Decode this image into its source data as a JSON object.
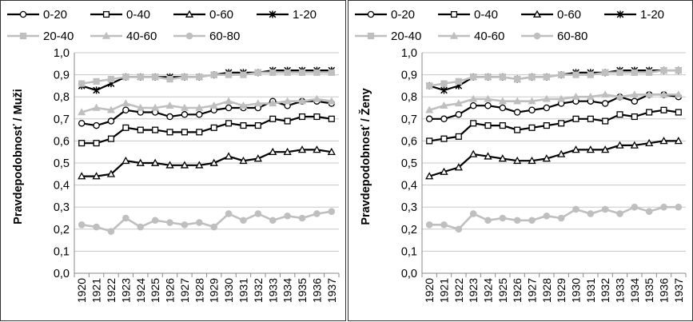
{
  "chart_data": [
    {
      "type": "line",
      "ylabel": "Pravdepodobnosť / Muži",
      "xlabel": "",
      "ylim": [
        0,
        1
      ],
      "yticks": [
        "0,0",
        "0,1",
        "0,2",
        "0,3",
        "0,4",
        "0,5",
        "0,6",
        "0,7",
        "0,8",
        "0,9",
        "1,0"
      ],
      "grid": true,
      "legend": "top",
      "categories": [
        "1920",
        "1921",
        "1922",
        "1923",
        "1924",
        "1925",
        "1926",
        "1927",
        "1928",
        "1929",
        "1930",
        "1931",
        "1932",
        "1933",
        "1934",
        "1935",
        "1936",
        "1937"
      ],
      "series": [
        {
          "name": "0-20",
          "marker": "circle-open",
          "color": "#000000",
          "values": [
            0.68,
            0.67,
            0.69,
            0.74,
            0.73,
            0.73,
            0.71,
            0.72,
            0.72,
            0.74,
            0.75,
            0.75,
            0.75,
            0.78,
            0.76,
            0.78,
            0.78,
            0.77
          ]
        },
        {
          "name": "0-40",
          "marker": "square-open",
          "color": "#000000",
          "values": [
            0.59,
            0.59,
            0.61,
            0.66,
            0.65,
            0.65,
            0.64,
            0.64,
            0.64,
            0.66,
            0.68,
            0.67,
            0.67,
            0.7,
            0.69,
            0.71,
            0.71,
            0.7
          ]
        },
        {
          "name": "0-60",
          "marker": "triangle-open",
          "color": "#000000",
          "values": [
            0.44,
            0.44,
            0.45,
            0.51,
            0.5,
            0.5,
            0.49,
            0.49,
            0.49,
            0.5,
            0.53,
            0.51,
            0.52,
            0.55,
            0.55,
            0.56,
            0.56,
            0.55
          ]
        },
        {
          "name": "1-20",
          "marker": "star",
          "color": "#000000",
          "values": [
            0.85,
            0.83,
            0.86,
            0.89,
            0.89,
            0.89,
            0.89,
            0.89,
            0.89,
            0.9,
            0.91,
            0.91,
            0.91,
            0.92,
            0.92,
            0.92,
            0.92,
            0.92
          ]
        },
        {
          "name": "20-40",
          "marker": "square-filled",
          "color": "#bfbfbf",
          "values": [
            0.86,
            0.87,
            0.88,
            0.89,
            0.89,
            0.89,
            0.88,
            0.89,
            0.89,
            0.9,
            0.9,
            0.9,
            0.91,
            0.91,
            0.91,
            0.91,
            0.91,
            0.91
          ]
        },
        {
          "name": "40-60",
          "marker": "triangle-filled",
          "color": "#bfbfbf",
          "values": [
            0.73,
            0.75,
            0.74,
            0.77,
            0.75,
            0.75,
            0.76,
            0.75,
            0.75,
            0.76,
            0.78,
            0.76,
            0.77,
            0.77,
            0.78,
            0.78,
            0.79,
            0.78
          ]
        },
        {
          "name": "60-80",
          "marker": "circle-filled",
          "color": "#bfbfbf",
          "values": [
            0.22,
            0.21,
            0.19,
            0.25,
            0.21,
            0.24,
            0.23,
            0.22,
            0.23,
            0.21,
            0.27,
            0.24,
            0.27,
            0.24,
            0.26,
            0.25,
            0.27,
            0.28
          ]
        }
      ]
    },
    {
      "type": "line",
      "ylabel": "Pravdepodobnosť / Ženy",
      "xlabel": "",
      "ylim": [
        0,
        1
      ],
      "yticks": [
        "0,0",
        "0,1",
        "0,2",
        "0,3",
        "0,4",
        "0,5",
        "0,6",
        "0,7",
        "0,8",
        "0,9",
        "1,0"
      ],
      "grid": true,
      "legend": "top",
      "categories": [
        "1920",
        "1921",
        "1922",
        "1923",
        "1924",
        "1925",
        "1926",
        "1927",
        "1928",
        "1929",
        "1930",
        "1931",
        "1932",
        "1933",
        "1934",
        "1935",
        "1936",
        "1937"
      ],
      "series": [
        {
          "name": "0-20",
          "marker": "circle-open",
          "color": "#000000",
          "values": [
            0.7,
            0.7,
            0.72,
            0.76,
            0.76,
            0.75,
            0.73,
            0.74,
            0.75,
            0.77,
            0.78,
            0.78,
            0.77,
            0.8,
            0.78,
            0.81,
            0.81,
            0.8
          ]
        },
        {
          "name": "0-40",
          "marker": "square-open",
          "color": "#000000",
          "values": [
            0.6,
            0.61,
            0.62,
            0.68,
            0.67,
            0.67,
            0.65,
            0.66,
            0.67,
            0.68,
            0.7,
            0.7,
            0.69,
            0.72,
            0.71,
            0.73,
            0.74,
            0.73
          ]
        },
        {
          "name": "0-60",
          "marker": "triangle-open",
          "color": "#000000",
          "values": [
            0.44,
            0.46,
            0.48,
            0.54,
            0.53,
            0.52,
            0.51,
            0.51,
            0.52,
            0.54,
            0.56,
            0.56,
            0.56,
            0.58,
            0.58,
            0.59,
            0.6,
            0.6
          ]
        },
        {
          "name": "1-20",
          "marker": "star",
          "color": "#000000",
          "values": [
            0.85,
            0.83,
            0.85,
            0.89,
            0.89,
            0.89,
            0.88,
            0.89,
            0.89,
            0.9,
            0.91,
            0.91,
            0.91,
            0.92,
            0.92,
            0.92,
            0.92,
            0.92
          ]
        },
        {
          "name": "20-40",
          "marker": "square-filled",
          "color": "#bfbfbf",
          "values": [
            0.85,
            0.86,
            0.87,
            0.89,
            0.89,
            0.89,
            0.88,
            0.89,
            0.89,
            0.9,
            0.9,
            0.9,
            0.91,
            0.91,
            0.91,
            0.91,
            0.92,
            0.92
          ]
        },
        {
          "name": "40-60",
          "marker": "triangle-filled",
          "color": "#bfbfbf",
          "values": [
            0.74,
            0.76,
            0.77,
            0.79,
            0.79,
            0.78,
            0.78,
            0.78,
            0.79,
            0.79,
            0.8,
            0.8,
            0.81,
            0.8,
            0.81,
            0.81,
            0.81,
            0.81
          ]
        },
        {
          "name": "60-80",
          "marker": "circle-filled",
          "color": "#bfbfbf",
          "values": [
            0.22,
            0.22,
            0.2,
            0.27,
            0.24,
            0.25,
            0.24,
            0.24,
            0.26,
            0.25,
            0.29,
            0.27,
            0.29,
            0.27,
            0.3,
            0.28,
            0.3,
            0.3
          ]
        }
      ]
    }
  ]
}
